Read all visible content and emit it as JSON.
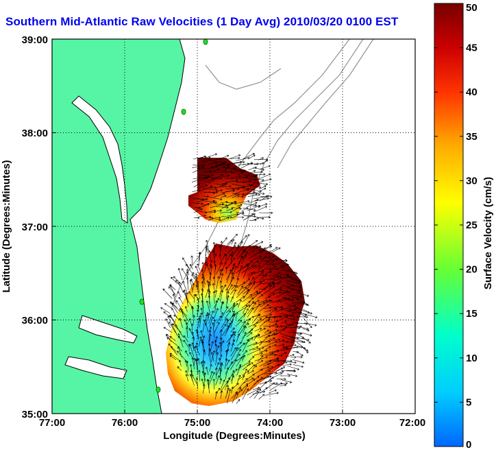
{
  "title": "Southern Mid-Atlantic Raw Velocities (1 Day Avg) 2010/03/20 0100 EST",
  "map": {
    "xlabel": "Longitude (Degrees:Minutes)",
    "ylabel": "Latitude (Degrees:Minutes)",
    "x_ticks": [
      "77:00",
      "76:00",
      "75:00",
      "74:00",
      "73:00",
      "72:00"
    ],
    "y_ticks": [
      "39:00",
      "38:00",
      "37:00",
      "36:00",
      "35:00"
    ],
    "lon_range": [
      -77,
      -72
    ],
    "lat_range": [
      35,
      39
    ],
    "grid": true,
    "land_color": "#55f5a5",
    "coast_color": "#000000",
    "bathymetry_color": "#909090",
    "station_color": "#22dd22"
  },
  "colorbar": {
    "label": "Surface Velocity (cm/s)",
    "ticks": [
      "0",
      "5",
      "10",
      "15",
      "20",
      "25",
      "30",
      "35",
      "40",
      "45",
      "50"
    ],
    "range": [
      0,
      50
    ],
    "colors": [
      "#0066ff",
      "#00ccff",
      "#00ffcc",
      "#66ff33",
      "#ffff00",
      "#ffaa00",
      "#ff3300",
      "#cc0000",
      "#770000"
    ]
  }
}
